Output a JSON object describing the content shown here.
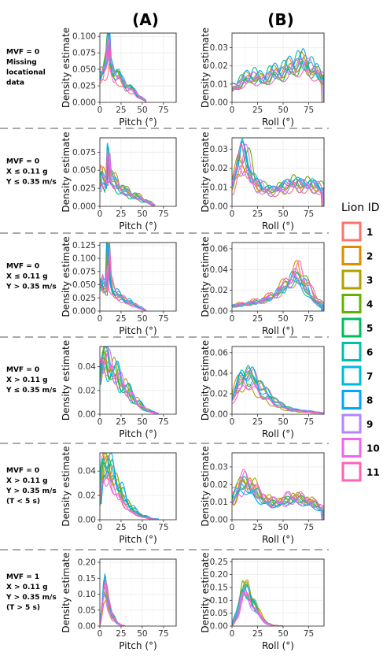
{
  "column_headers": [
    "(A)",
    "(B)"
  ],
  "row_labels": [
    [
      "MVF = 0",
      "Missing",
      "locational",
      "data"
    ],
    [
      "MVF = 0",
      "X ≤ 0.11 g",
      "Y ≤ 0.35 m/s"
    ],
    [
      "MVF = 0",
      "X ≤ 0.11 g",
      "Y > 0.35 m/s"
    ],
    [
      "MVF = 0",
      "X > 0.11 g",
      "Y ≤ 0.35 m/s"
    ],
    [
      "MVF = 0",
      "X > 0.11 g",
      "Y > 0.35 m/s",
      "(T < 5 s)"
    ],
    [
      "MVF = 1",
      "X > 0.11 g",
      "Y > 0.35 m/s",
      "(T > 5 s)"
    ]
  ],
  "legend": {
    "title": "Lion ID",
    "labels": [
      "1",
      "2",
      "3",
      "4",
      "5",
      "6",
      "7",
      "8",
      "9",
      "10",
      "11"
    ],
    "colors": [
      "#F8766D",
      "#DB8E00",
      "#AEA200",
      "#64B200",
      "#00BD5C",
      "#00C1A7",
      "#00BADE",
      "#00A6FF",
      "#B385FF",
      "#EF67EB",
      "#FF63B6"
    ]
  },
  "chart_data": [
    {
      "type": "line",
      "panel": "A1",
      "xlabel": "Pitch (°)",
      "ylabel": "Density estimate",
      "xlim": [
        0,
        90
      ],
      "ylim": [
        0,
        0.105
      ],
      "xticks": [
        "0",
        "25",
        "50",
        "75"
      ],
      "xtick_values": [
        0,
        25,
        50,
        75
      ],
      "yticks": [
        "0.000",
        "0.025",
        "0.050",
        "0.075",
        "0.100"
      ],
      "ytick_values": [
        0,
        0.025,
        0.05,
        0.075,
        0.1
      ],
      "grid": true,
      "series_summary": {
        "x": [
          0,
          2,
          5,
          8,
          10,
          12,
          15,
          20,
          25,
          30,
          35,
          40,
          45,
          50,
          55
        ],
        "y": [
          0.035,
          0.045,
          0.05,
          0.06,
          0.09,
          0.05,
          0.045,
          0.04,
          0.03,
          0.025,
          0.02,
          0.015,
          0.01,
          0.005,
          0.001
        ]
      }
    },
    {
      "type": "line",
      "panel": "B1",
      "xlabel": "Roll (°)",
      "ylabel": "Density estimate",
      "xlim": [
        0,
        90
      ],
      "ylim": [
        0,
        0.038
      ],
      "xticks": [
        "0",
        "25",
        "50",
        "75"
      ],
      "xtick_values": [
        0,
        25,
        50,
        75
      ],
      "yticks": [
        "0.00",
        "0.01",
        "0.02",
        "0.03"
      ],
      "ytick_values": [
        0,
        0.01,
        0.02,
        0.03
      ],
      "grid": true,
      "series_summary": {
        "x": [
          0,
          10,
          20,
          30,
          40,
          50,
          60,
          70,
          80,
          90
        ],
        "y": [
          0.007,
          0.011,
          0.014,
          0.012,
          0.015,
          0.016,
          0.019,
          0.021,
          0.017,
          0.012
        ]
      }
    },
    {
      "type": "line",
      "panel": "A2",
      "xlabel": "Pitch (°)",
      "ylabel": "Density estimate",
      "xlim": [
        0,
        90
      ],
      "ylim": [
        0,
        0.095
      ],
      "xticks": [
        "0",
        "25",
        "50",
        "75"
      ],
      "xtick_values": [
        0,
        25,
        50,
        75
      ],
      "yticks": [
        "0.000",
        "0.025",
        "0.050",
        "0.075"
      ],
      "ytick_values": [
        0,
        0.025,
        0.05,
        0.075
      ],
      "grid": true,
      "series_summary": {
        "x": [
          0,
          2,
          5,
          8,
          10,
          12,
          15,
          20,
          30,
          40,
          50,
          60,
          65
        ],
        "y": [
          0.03,
          0.04,
          0.035,
          0.03,
          0.085,
          0.045,
          0.035,
          0.03,
          0.02,
          0.015,
          0.01,
          0.004,
          0.001
        ]
      }
    },
    {
      "type": "line",
      "panel": "B2",
      "xlabel": "Roll (°)",
      "ylabel": "Density estimate",
      "xlim": [
        0,
        90
      ],
      "ylim": [
        0,
        0.036
      ],
      "xticks": [
        "0",
        "25",
        "50",
        "75"
      ],
      "xtick_values": [
        0,
        25,
        50,
        75
      ],
      "yticks": [
        "0.00",
        "0.01",
        "0.02",
        "0.03"
      ],
      "ytick_values": [
        0,
        0.01,
        0.02,
        0.03
      ],
      "grid": true,
      "series_summary": {
        "x": [
          0,
          5,
          10,
          15,
          20,
          30,
          40,
          50,
          60,
          70,
          80,
          90
        ],
        "y": [
          0.01,
          0.02,
          0.028,
          0.022,
          0.014,
          0.009,
          0.008,
          0.01,
          0.012,
          0.011,
          0.011,
          0.008
        ]
      }
    },
    {
      "type": "line",
      "panel": "A3",
      "xlabel": "Pitch (°)",
      "ylabel": "Density estimate",
      "xlim": [
        0,
        90
      ],
      "ylim": [
        0,
        0.13
      ],
      "xticks": [
        "0",
        "25",
        "50",
        "75"
      ],
      "xtick_values": [
        0,
        25,
        50,
        75
      ],
      "yticks": [
        "0.000",
        "0.025",
        "0.050",
        "0.075",
        "0.100",
        "0.125"
      ],
      "ytick_values": [
        0,
        0.025,
        0.05,
        0.075,
        0.1,
        0.125
      ],
      "grid": true,
      "series_summary": {
        "x": [
          0,
          2,
          5,
          8,
          10,
          12,
          15,
          20,
          30,
          40,
          50,
          55
        ],
        "y": [
          0.045,
          0.06,
          0.045,
          0.04,
          0.12,
          0.055,
          0.04,
          0.03,
          0.02,
          0.012,
          0.004,
          0.001
        ]
      }
    },
    {
      "type": "line",
      "panel": "B3",
      "xlabel": "Roll (°)",
      "ylabel": "Density estimate",
      "xlim": [
        0,
        90
      ],
      "ylim": [
        0,
        0.066
      ],
      "xticks": [
        "0",
        "25",
        "50",
        "75"
      ],
      "xtick_values": [
        0,
        25,
        50,
        75
      ],
      "yticks": [
        "0.00",
        "0.02",
        "0.04",
        "0.06"
      ],
      "ytick_values": [
        0,
        0.02,
        0.04,
        0.06
      ],
      "grid": true,
      "series_summary": {
        "x": [
          0,
          10,
          20,
          30,
          40,
          50,
          60,
          65,
          70,
          80,
          90
        ],
        "y": [
          0.005,
          0.006,
          0.008,
          0.01,
          0.014,
          0.022,
          0.032,
          0.035,
          0.028,
          0.012,
          0.004
        ]
      }
    },
    {
      "type": "line",
      "panel": "A4",
      "xlabel": "Pitch (°)",
      "ylabel": "Density estimate",
      "xlim": [
        0,
        90
      ],
      "ylim": [
        0,
        0.057
      ],
      "xticks": [
        "0",
        "25",
        "50",
        "75"
      ],
      "xtick_values": [
        0,
        25,
        50,
        75
      ],
      "yticks": [
        "0.00",
        "0.02",
        "0.04"
      ],
      "ytick_values": [
        0,
        0.02,
        0.04
      ],
      "grid": true,
      "series_summary": {
        "x": [
          0,
          3,
          5,
          10,
          20,
          30,
          40,
          50,
          60,
          70
        ],
        "y": [
          0.03,
          0.045,
          0.046,
          0.042,
          0.032,
          0.022,
          0.013,
          0.006,
          0.002,
          0.0005
        ]
      }
    },
    {
      "type": "line",
      "panel": "B4",
      "xlabel": "Roll (°)",
      "ylabel": "Density estimate",
      "xlim": [
        0,
        90
      ],
      "ylim": [
        0,
        0.066
      ],
      "xticks": [
        "0",
        "25",
        "50",
        "75"
      ],
      "xtick_values": [
        0,
        25,
        50,
        75
      ],
      "yticks": [
        "0.00",
        "0.02",
        "0.04",
        "0.06"
      ],
      "ytick_values": [
        0,
        0.02,
        0.04,
        0.06
      ],
      "grid": true,
      "series_summary": {
        "x": [
          0,
          5,
          10,
          15,
          20,
          30,
          40,
          50,
          60,
          70,
          80,
          90
        ],
        "y": [
          0.015,
          0.025,
          0.033,
          0.036,
          0.033,
          0.022,
          0.013,
          0.007,
          0.004,
          0.003,
          0.002,
          0.001
        ]
      }
    },
    {
      "type": "line",
      "panel": "A5",
      "xlabel": "Pitch (°)",
      "ylabel": "Density estimate",
      "xlim": [
        0,
        90
      ],
      "ylim": [
        0,
        0.055
      ],
      "xticks": [
        "0",
        "25",
        "50",
        "75"
      ],
      "xtick_values": [
        0,
        25,
        50,
        75
      ],
      "yticks": [
        "0.00",
        "0.02",
        "0.04"
      ],
      "ytick_values": [
        0,
        0.02,
        0.04
      ],
      "grid": true,
      "series_summary": {
        "x": [
          0,
          3,
          5,
          10,
          15,
          20,
          30,
          40,
          50,
          60,
          70
        ],
        "y": [
          0.01,
          0.035,
          0.042,
          0.04,
          0.035,
          0.028,
          0.015,
          0.007,
          0.003,
          0.001,
          0.0003
        ]
      }
    },
    {
      "type": "line",
      "panel": "B5",
      "xlabel": "Roll (°)",
      "ylabel": "Density estimate",
      "xlim": [
        0,
        90
      ],
      "ylim": [
        0,
        0.038
      ],
      "xticks": [
        "0",
        "25",
        "50",
        "75"
      ],
      "xtick_values": [
        0,
        25,
        50,
        75
      ],
      "yticks": [
        "0.00",
        "0.01",
        "0.02",
        "0.03"
      ],
      "ytick_values": [
        0,
        0.01,
        0.02,
        0.03
      ],
      "grid": true,
      "series_summary": {
        "x": [
          0,
          5,
          10,
          15,
          20,
          30,
          40,
          50,
          60,
          70,
          80,
          90
        ],
        "y": [
          0.01,
          0.016,
          0.02,
          0.02,
          0.018,
          0.012,
          0.009,
          0.01,
          0.012,
          0.011,
          0.009,
          0.006
        ]
      }
    },
    {
      "type": "line",
      "panel": "A6",
      "xlabel": "Pitch (°)",
      "ylabel": "Density estimate",
      "xlim": [
        0,
        90
      ],
      "ylim": [
        0,
        0.21
      ],
      "xticks": [
        "0",
        "25",
        "50",
        "75"
      ],
      "xtick_values": [
        0,
        25,
        50,
        75
      ],
      "yticks": [
        "0.00",
        "0.05",
        "0.10",
        "0.15",
        "0.20"
      ],
      "ytick_values": [
        0,
        0.05,
        0.1,
        0.15,
        0.2
      ],
      "grid": true,
      "series_summary": {
        "x": [
          0,
          2,
          4,
          6,
          8,
          10,
          15,
          20,
          25,
          30
        ],
        "y": [
          0.005,
          0.04,
          0.1,
          0.12,
          0.1,
          0.07,
          0.03,
          0.01,
          0.003,
          0.0005
        ]
      }
    },
    {
      "type": "line",
      "panel": "B6",
      "xlabel": "Roll (°)",
      "ylabel": "Density estimate",
      "xlim": [
        0,
        90
      ],
      "ylim": [
        0,
        0.26
      ],
      "xticks": [
        "0",
        "25",
        "50",
        "75"
      ],
      "xtick_values": [
        0,
        25,
        50,
        75
      ],
      "yticks": [
        "0.00",
        "0.05",
        "0.10",
        "0.15",
        "0.20",
        "0.25"
      ],
      "ytick_values": [
        0,
        0.05,
        0.1,
        0.15,
        0.2,
        0.25
      ],
      "grid": true,
      "series_summary": {
        "x": [
          0,
          5,
          10,
          15,
          20,
          25,
          30,
          35,
          40,
          50
        ],
        "y": [
          0.003,
          0.05,
          0.14,
          0.15,
          0.1,
          0.06,
          0.03,
          0.01,
          0.003,
          0.0005
        ]
      }
    }
  ]
}
